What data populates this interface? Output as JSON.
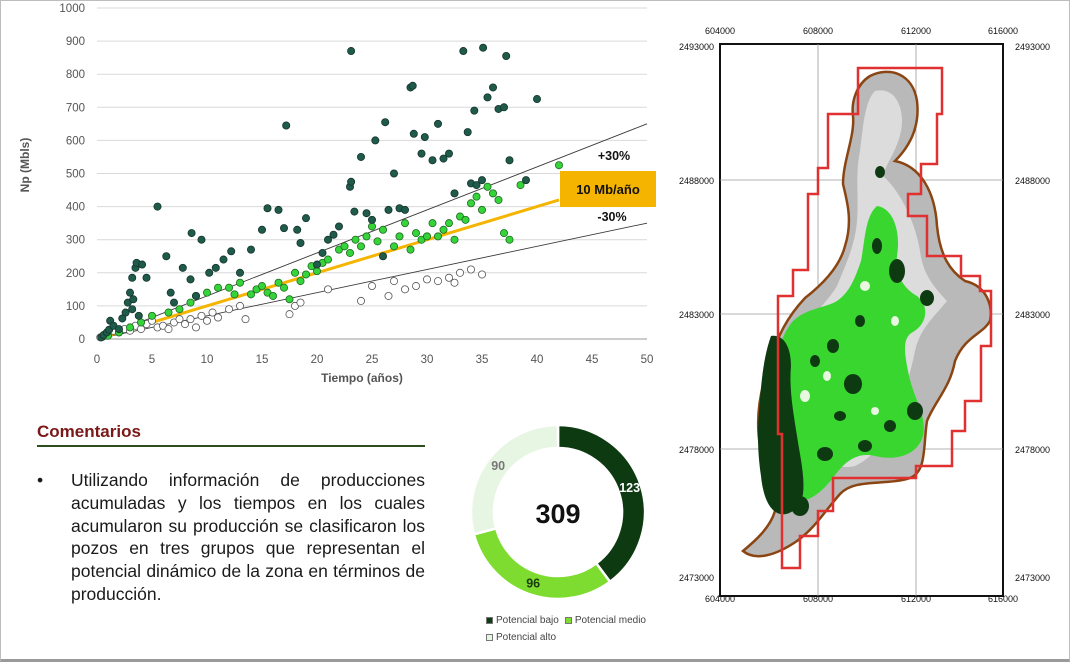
{
  "colors": {
    "potencial_bajo": "#0e3a12",
    "potencial_medio": "#7ddc2f",
    "potencial_alto": "#e7f6e2",
    "scatter_bajo": "#1f5a4a",
    "scatter_medio": "#35d43a",
    "scatter_alto": "#ffffff",
    "trend": "#f5b400",
    "title": "#7b1818",
    "boundary": "#e03030",
    "field_outline": "#8b4513"
  },
  "chart_data": [
    {
      "type": "scatter",
      "xlabel": "Tiempo (años)",
      "ylabel": "Np (Mbls)",
      "xlim": [
        0,
        50
      ],
      "ylim": [
        0,
        1000
      ],
      "xticks": [
        "0",
        "5",
        "10",
        "15",
        "20",
        "25",
        "30",
        "35",
        "40",
        "45",
        "50"
      ],
      "yticks": [
        "0",
        "100",
        "200",
        "300",
        "400",
        "500",
        "600",
        "700",
        "800",
        "900",
        "1000"
      ],
      "grid": "horizontal",
      "lines": [
        {
          "name": "+30%",
          "x": [
            0,
            50
          ],
          "y": [
            0,
            650
          ]
        },
        {
          "name": "-30%",
          "x": [
            0,
            50
          ],
          "y": [
            0,
            350
          ]
        },
        {
          "name": "10 Mb/año",
          "x": [
            0,
            42
          ],
          "y": [
            0,
            420
          ],
          "highlight": true
        }
      ],
      "annotations": [
        "+30%",
        "10 Mb/año",
        "-30%"
      ],
      "series": [
        {
          "key": "potencial_bajo",
          "points": [
            [
              0.4,
              5
            ],
            [
              0.6,
              12
            ],
            [
              0.9,
              20
            ],
            [
              1.1,
              28
            ],
            [
              1.2,
              55
            ],
            [
              1.5,
              40
            ],
            [
              2,
              30
            ],
            [
              2.3,
              62
            ],
            [
              2.6,
              80
            ],
            [
              2.8,
              110
            ],
            [
              3,
              140
            ],
            [
              3.2,
              185
            ],
            [
              3.3,
              120
            ],
            [
              3.5,
              215
            ],
            [
              3.6,
              230
            ],
            [
              3.2,
              90
            ],
            [
              3.8,
              70
            ],
            [
              4.1,
              225
            ],
            [
              4.5,
              185
            ],
            [
              5.5,
              400
            ],
            [
              6.3,
              250
            ],
            [
              6.7,
              140
            ],
            [
              7,
              110
            ],
            [
              7.8,
              215
            ],
            [
              8.5,
              180
            ],
            [
              8.6,
              320
            ],
            [
              9,
              130
            ],
            [
              9.5,
              300
            ],
            [
              10.2,
              200
            ],
            [
              10.8,
              215
            ],
            [
              11.5,
              240
            ],
            [
              12.2,
              265
            ],
            [
              13,
              200
            ],
            [
              14,
              270
            ],
            [
              15,
              330
            ],
            [
              15.5,
              395
            ],
            [
              16.5,
              390
            ],
            [
              17,
              335
            ],
            [
              17.2,
              645
            ],
            [
              18.2,
              330
            ],
            [
              18.5,
              290
            ],
            [
              19,
              365
            ],
            [
              20,
              225
            ],
            [
              20.5,
              260
            ],
            [
              21,
              300
            ],
            [
              21.5,
              315
            ],
            [
              22,
              340
            ],
            [
              23,
              460
            ],
            [
              23.1,
              475
            ],
            [
              23.1,
              870
            ],
            [
              23.4,
              385
            ],
            [
              24,
              550
            ],
            [
              24.5,
              380
            ],
            [
              25,
              360
            ],
            [
              25.3,
              600
            ],
            [
              26,
              250
            ],
            [
              26.2,
              655
            ],
            [
              26.5,
              390
            ],
            [
              27,
              500
            ],
            [
              27.5,
              395
            ],
            [
              28,
              390
            ],
            [
              28.5,
              760
            ],
            [
              28.7,
              765
            ],
            [
              28.8,
              620
            ],
            [
              29.5,
              560
            ],
            [
              29.8,
              610
            ],
            [
              30.5,
              540
            ],
            [
              31,
              650
            ],
            [
              31.5,
              545
            ],
            [
              32,
              560
            ],
            [
              32.5,
              440
            ],
            [
              33.3,
              870
            ],
            [
              33.7,
              625
            ],
            [
              34,
              470
            ],
            [
              34.3,
              690
            ],
            [
              34.5,
              465
            ],
            [
              35,
              480
            ],
            [
              35.1,
              880
            ],
            [
              35.5,
              730
            ],
            [
              36,
              760
            ],
            [
              36.5,
              695
            ],
            [
              37,
              700
            ],
            [
              37.2,
              855
            ],
            [
              37.5,
              540
            ],
            [
              39,
              480
            ],
            [
              40,
              725
            ]
          ]
        },
        {
          "key": "potencial_medio",
          "points": [
            [
              1,
              10
            ],
            [
              2,
              20
            ],
            [
              3,
              35
            ],
            [
              4,
              50
            ],
            [
              5,
              70
            ],
            [
              6.5,
              80
            ],
            [
              7.5,
              90
            ],
            [
              8.5,
              110
            ],
            [
              9,
              130
            ],
            [
              10,
              140
            ],
            [
              11,
              155
            ],
            [
              12,
              155
            ],
            [
              12.5,
              135
            ],
            [
              13,
              170
            ],
            [
              14,
              135
            ],
            [
              14.5,
              150
            ],
            [
              15,
              160
            ],
            [
              15.5,
              140
            ],
            [
              16,
              130
            ],
            [
              16.5,
              170
            ],
            [
              17,
              155
            ],
            [
              17.5,
              120
            ],
            [
              18,
              200
            ],
            [
              18.5,
              175
            ],
            [
              19,
              195
            ],
            [
              19.5,
              220
            ],
            [
              20,
              205
            ],
            [
              20.5,
              230
            ],
            [
              21,
              240
            ],
            [
              22,
              270
            ],
            [
              22.5,
              280
            ],
            [
              23,
              260
            ],
            [
              23.5,
              300
            ],
            [
              24,
              280
            ],
            [
              24.5,
              310
            ],
            [
              25,
              340
            ],
            [
              25.5,
              295
            ],
            [
              26,
              330
            ],
            [
              27,
              280
            ],
            [
              27.5,
              310
            ],
            [
              28,
              350
            ],
            [
              28.5,
              270
            ],
            [
              29,
              320
            ],
            [
              29.5,
              300
            ],
            [
              30,
              310
            ],
            [
              30.5,
              350
            ],
            [
              31,
              310
            ],
            [
              31.5,
              330
            ],
            [
              32,
              350
            ],
            [
              32.5,
              300
            ],
            [
              33,
              370
            ],
            [
              33.5,
              360
            ],
            [
              34,
              410
            ],
            [
              34.5,
              430
            ],
            [
              35,
              390
            ],
            [
              35.5,
              460
            ],
            [
              36,
              440
            ],
            [
              36.5,
              420
            ],
            [
              37,
              320
            ],
            [
              37.5,
              300
            ],
            [
              38.5,
              465
            ],
            [
              42,
              525
            ]
          ]
        },
        {
          "key": "potencial_alto",
          "points": [
            [
              0.3,
              5
            ],
            [
              0.6,
              8
            ],
            [
              1,
              15
            ],
            [
              1.5,
              25
            ],
            [
              2,
              20
            ],
            [
              2.5,
              30
            ],
            [
              3,
              25
            ],
            [
              3.5,
              40
            ],
            [
              4,
              30
            ],
            [
              4.5,
              45
            ],
            [
              5,
              55
            ],
            [
              5.5,
              35
            ],
            [
              6,
              40
            ],
            [
              6.5,
              30
            ],
            [
              7,
              50
            ],
            [
              7.5,
              60
            ],
            [
              8,
              45
            ],
            [
              8.5,
              60
            ],
            [
              9,
              35
            ],
            [
              9.5,
              70
            ],
            [
              10,
              55
            ],
            [
              10.5,
              80
            ],
            [
              11,
              65
            ],
            [
              12,
              90
            ],
            [
              13,
              100
            ],
            [
              13.5,
              60
            ],
            [
              17.5,
              75
            ],
            [
              18,
              100
            ],
            [
              18.5,
              110
            ],
            [
              21,
              150
            ],
            [
              24,
              115
            ],
            [
              25,
              160
            ],
            [
              26.5,
              130
            ],
            [
              27,
              175
            ],
            [
              28,
              150
            ],
            [
              29,
              160
            ],
            [
              30,
              180
            ],
            [
              31,
              175
            ],
            [
              32,
              185
            ],
            [
              32.5,
              170
            ],
            [
              33,
              200
            ],
            [
              34,
              210
            ],
            [
              35,
              195
            ]
          ]
        }
      ]
    },
    {
      "type": "pie",
      "center_label": "309",
      "categories": [
        "Potencial bajo",
        "Potencial medio",
        "Potencial alto"
      ],
      "values": [
        123,
        96,
        90
      ],
      "value_labels": [
        "123",
        "96",
        "90"
      ]
    }
  ],
  "comments": {
    "title": "Comentarios",
    "bullet": "•",
    "text": "Utilizando información de producciones acumuladas y los tiempos en los cuales acumularon su producción se clasificaron los pozos en tres grupos que representan el potencial dinámico de la zona en términos de producción."
  },
  "map": {
    "x_ticks": [
      "604000",
      "608000",
      "612000",
      "616000"
    ],
    "y_ticks": [
      "2493000",
      "2488000",
      "2483000",
      "2478000",
      "2473000"
    ]
  }
}
